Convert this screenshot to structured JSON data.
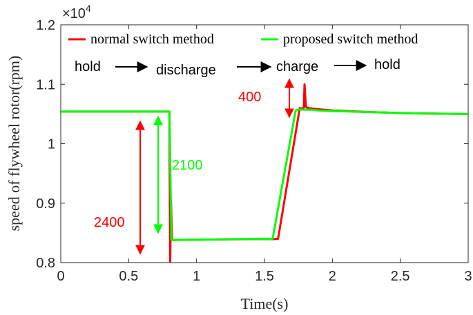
{
  "chart_data": {
    "type": "line",
    "xlabel": "Time(s)",
    "ylabel": "speed of flywheel rotor(rpm)",
    "xlim": [
      0,
      3
    ],
    "ylim": [
      8000,
      12000
    ],
    "x_ticks": [
      0,
      0.5,
      1,
      1.5,
      2,
      2.5,
      3
    ],
    "x_tick_labels": [
      "0",
      "0.5",
      "1",
      "1.5",
      "2",
      "2.5",
      "3"
    ],
    "y_ticks": [
      8000,
      9000,
      10000,
      11000,
      12000
    ],
    "y_tick_labels": [
      "0.8",
      "0.9",
      "1",
      "1.1",
      "1.2"
    ],
    "y_exponent_base": "×10",
    "y_exponent_power": "4",
    "grid": false,
    "legend_position": "top",
    "series": [
      {
        "name": "normal switch method",
        "color": "#ff0000",
        "points": [
          [
            0,
            10540
          ],
          [
            0.8,
            10540
          ],
          [
            0.806,
            8000
          ],
          [
            0.812,
            9000
          ],
          [
            0.82,
            8380
          ],
          [
            1.0,
            8385
          ],
          [
            1.2,
            8390
          ],
          [
            1.4,
            8395
          ],
          [
            1.57,
            8395
          ],
          [
            1.6,
            8400
          ],
          [
            1.76,
            10600
          ],
          [
            1.78,
            10590
          ],
          [
            1.79,
            10610
          ],
          [
            1.795,
            11000
          ],
          [
            1.805,
            10620
          ],
          [
            1.82,
            10600
          ],
          [
            1.9,
            10580
          ],
          [
            2.0,
            10560
          ],
          [
            2.3,
            10530
          ],
          [
            2.6,
            10510
          ],
          [
            3.0,
            10500
          ]
        ]
      },
      {
        "name": "proposed switch method",
        "color": "#00ff00",
        "points": [
          [
            0,
            10540
          ],
          [
            0.5,
            10540
          ],
          [
            0.8,
            10540
          ],
          [
            0.815,
            8380
          ],
          [
            1.0,
            8385
          ],
          [
            1.3,
            8395
          ],
          [
            1.55,
            8400
          ],
          [
            1.56,
            8400
          ],
          [
            1.73,
            10560
          ],
          [
            1.76,
            10575
          ],
          [
            1.85,
            10570
          ],
          [
            1.9,
            10560
          ],
          [
            2.0,
            10550
          ],
          [
            2.3,
            10530
          ],
          [
            2.6,
            10510
          ],
          [
            3.0,
            10500
          ]
        ]
      }
    ],
    "phase_labels": [
      "hold",
      "discharge",
      "charge",
      "hold"
    ],
    "annotations": [
      {
        "text": "2400",
        "color": "#ff0000"
      },
      {
        "text": "2100",
        "color": "#00ff00"
      },
      {
        "text": "400",
        "color": "#ff0000"
      }
    ]
  }
}
